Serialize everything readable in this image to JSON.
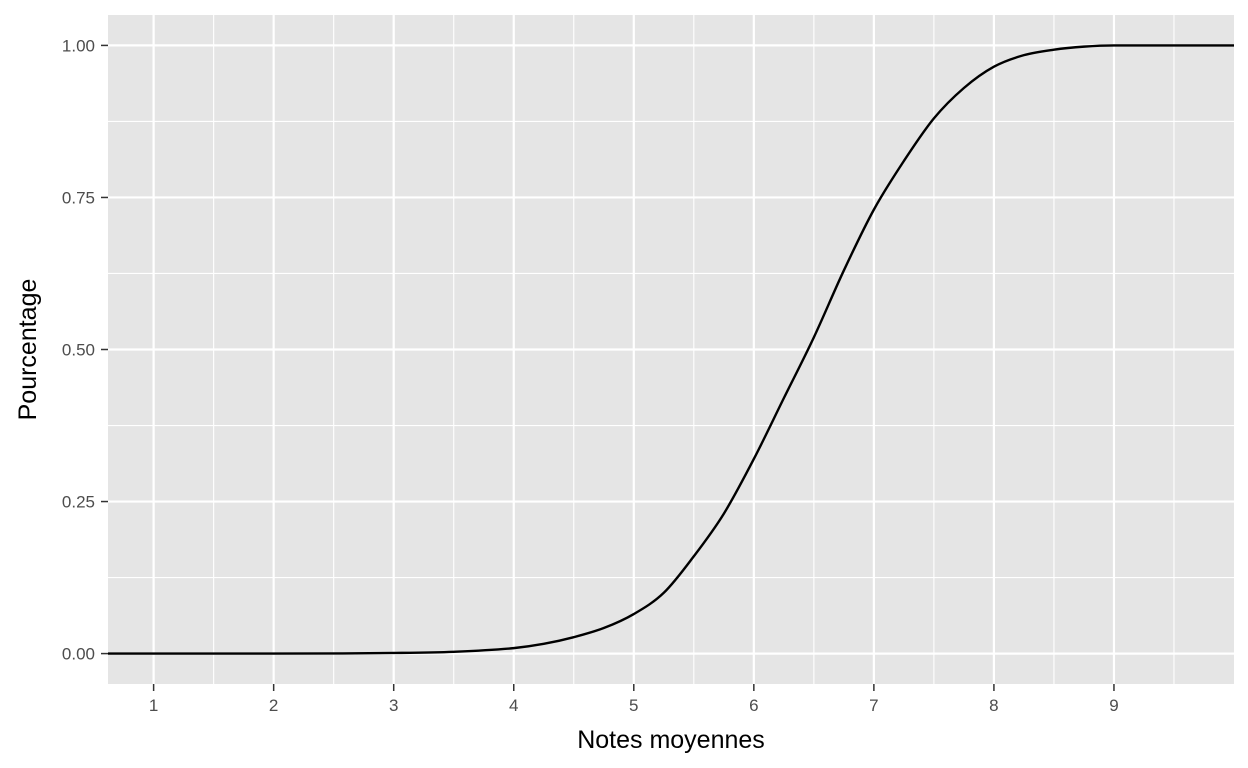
{
  "chart_data": {
    "type": "line",
    "title": "",
    "xlabel": "Notes moyennes",
    "ylabel": "Pourcentage",
    "xlim": [
      0.62,
      10.0
    ],
    "ylim": [
      -0.05,
      1.05
    ],
    "x_ticks": [
      1,
      2,
      3,
      4,
      5,
      6,
      7,
      8,
      9
    ],
    "x_tick_labels": [
      "1",
      "2",
      "3",
      "4",
      "5",
      "6",
      "7",
      "8",
      "9"
    ],
    "y_ticks": [
      0,
      0.25,
      0.5,
      0.75,
      1.0
    ],
    "y_tick_labels": [
      "0.00",
      "0.25",
      "0.50",
      "0.75",
      "1.00"
    ],
    "grid": true,
    "legend": "none",
    "colors": {
      "panel": "#e5e5e5",
      "grid": "#ffffff",
      "line": "#000000"
    },
    "series": [
      {
        "x": [
          0.62,
          1.0,
          2.0,
          3.0,
          3.5,
          4.0,
          4.25,
          4.5,
          4.75,
          5.0,
          5.25,
          5.5,
          5.75,
          6.0,
          6.25,
          6.5,
          6.75,
          7.0,
          7.25,
          7.5,
          7.75,
          8.0,
          8.25,
          8.5,
          8.75,
          9.0,
          9.5,
          10.0
        ],
        "y": [
          0.0,
          0.0,
          0.0,
          0.001,
          0.003,
          0.009,
          0.016,
          0.027,
          0.042,
          0.065,
          0.1,
          0.16,
          0.23,
          0.32,
          0.42,
          0.52,
          0.63,
          0.73,
          0.81,
          0.88,
          0.93,
          0.965,
          0.984,
          0.993,
          0.998,
          1.0,
          1.0,
          1.0
        ]
      }
    ]
  }
}
